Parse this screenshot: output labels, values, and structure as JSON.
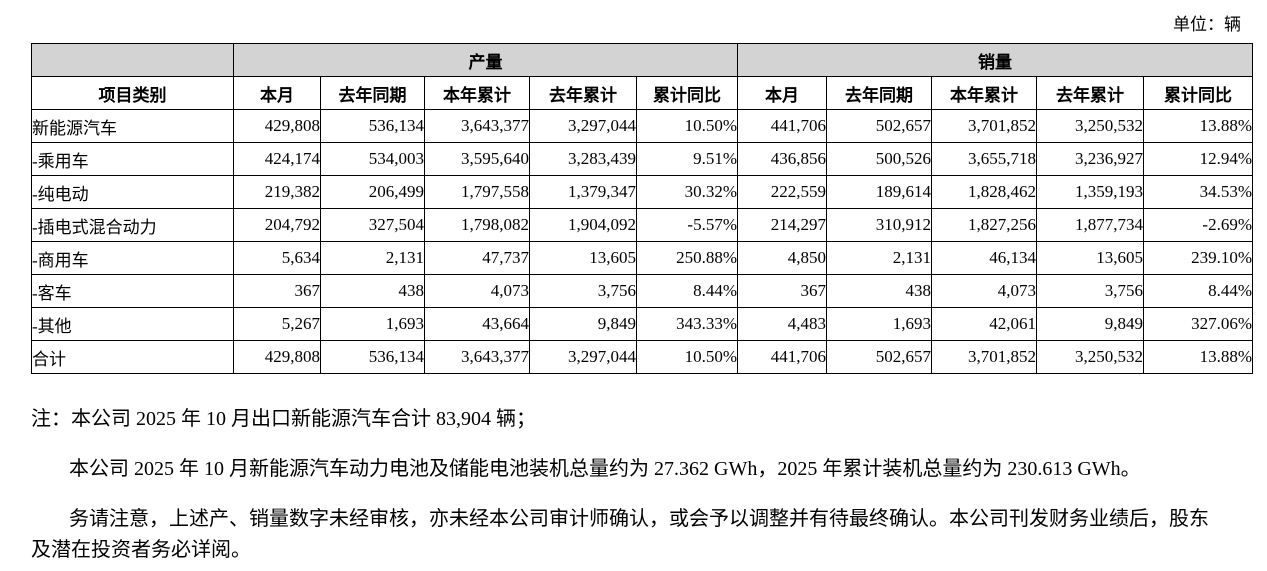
{
  "unit_label": "单位：辆",
  "table": {
    "group_headers": {
      "production": "产量",
      "sales": "销量"
    },
    "category_header": "项目类别",
    "col_headers": [
      "本月",
      "去年同期",
      "本年累计",
      "去年累计",
      "累计同比"
    ],
    "rows": [
      {
        "label": "新能源汽车",
        "indent": 0,
        "production": [
          "429,808",
          "536,134",
          "3,643,377",
          "3,297,044",
          "10.50%"
        ],
        "sales": [
          "441,706",
          "502,657",
          "3,701,852",
          "3,250,532",
          "13.88%"
        ]
      },
      {
        "label": "-乘用车",
        "indent": 1,
        "production": [
          "424,174",
          "534,003",
          "3,595,640",
          "3,283,439",
          "9.51%"
        ],
        "sales": [
          "436,856",
          "500,526",
          "3,655,718",
          "3,236,927",
          "12.94%"
        ]
      },
      {
        "label": "-纯电动",
        "indent": 2,
        "production": [
          "219,382",
          "206,499",
          "1,797,558",
          "1,379,347",
          "30.32%"
        ],
        "sales": [
          "222,559",
          "189,614",
          "1,828,462",
          "1,359,193",
          "34.53%"
        ]
      },
      {
        "label": "-插电式混合动力",
        "indent": 2,
        "production": [
          "204,792",
          "327,504",
          "1,798,082",
          "1,904,092",
          "-5.57%"
        ],
        "sales": [
          "214,297",
          "310,912",
          "1,827,256",
          "1,877,734",
          "-2.69%"
        ]
      },
      {
        "label": "-商用车",
        "indent": 1,
        "production": [
          "5,634",
          "2,131",
          "47,737",
          "13,605",
          "250.88%"
        ],
        "sales": [
          "4,850",
          "2,131",
          "46,134",
          "13,605",
          "239.10%"
        ]
      },
      {
        "label": "-客车",
        "indent": 2,
        "production": [
          "367",
          "438",
          "4,073",
          "3,756",
          "8.44%"
        ],
        "sales": [
          "367",
          "438",
          "4,073",
          "3,756",
          "8.44%"
        ]
      },
      {
        "label": "-其他",
        "indent": 2,
        "production": [
          "5,267",
          "1,693",
          "43,664",
          "9,849",
          "343.33%"
        ],
        "sales": [
          "4,483",
          "1,693",
          "42,061",
          "9,849",
          "327.06%"
        ]
      },
      {
        "label": "合计",
        "indent": 0,
        "production": [
          "429,808",
          "536,134",
          "3,643,377",
          "3,297,044",
          "10.50%"
        ],
        "sales": [
          "441,706",
          "502,657",
          "3,701,852",
          "3,250,532",
          "13.88%"
        ]
      }
    ]
  },
  "notes": [
    "注：本公司 2025 年 10 月出口新能源汽车合计 83,904 辆；",
    "本公司 2025 年 10 月新能源汽车动力电池及储能电池装机总量约为 27.362 GWh，2025 年累计装机总量约为 230.613 GWh。",
    "务请注意，上述产、销量数字未经审核，亦未经本公司审计师确认，或会予以调整并有待最终确认。本公司刊发财务业绩后，股东及潜在投资者务必详阅。"
  ],
  "colors": {
    "header_bg": "#d3d3d3",
    "border": "#000000",
    "text": "#000000"
  }
}
